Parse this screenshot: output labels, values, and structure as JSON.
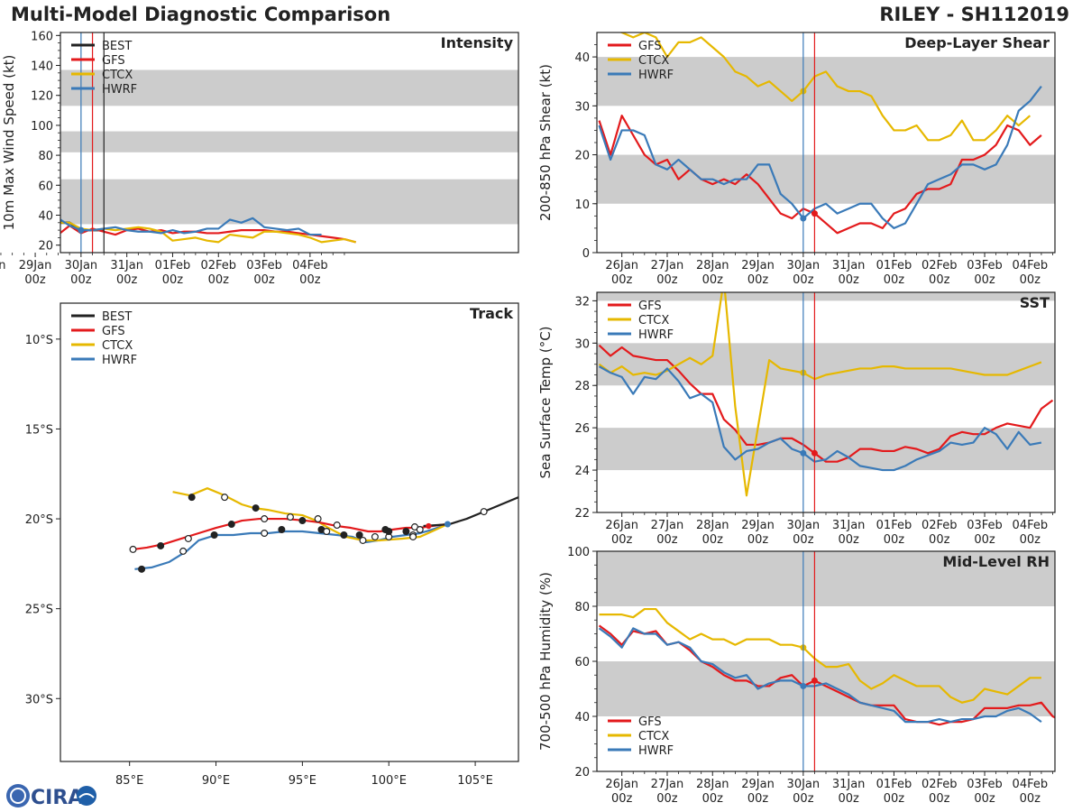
{
  "header": {
    "title": "Multi-Model Diagnostic Comparison",
    "storm": "RILEY - SH112019"
  },
  "logo": {
    "text": "CIRA"
  },
  "colors": {
    "BEST": "#222222",
    "GFS": "#e31a1c",
    "CTCX": "#e6b800",
    "HWRF": "#3a7ab8",
    "band": "#cccccc",
    "vline_init": "#3a7ab8",
    "vline_gfs": "#e31a1c",
    "vline_best": "#222222"
  },
  "time_ticks": [
    [
      "26Jan",
      "00z"
    ],
    [
      "27Jan",
      "00z"
    ],
    [
      "28Jan",
      "00z"
    ],
    [
      "29Jan",
      "00z"
    ],
    [
      "30Jan",
      "00z"
    ],
    [
      "31Jan",
      "00z"
    ],
    [
      "01Feb",
      "00z"
    ],
    [
      "02Feb",
      "00z"
    ],
    [
      "03Feb",
      "00z"
    ],
    [
      "04Feb",
      "00z"
    ]
  ],
  "chart_data": [
    {
      "id": "intensity",
      "type": "line",
      "title": "Intensity",
      "ylabel": "10m Max Wind Speed (kt)",
      "xlim": [
        -0.45,
        9.55
      ],
      "ylim": [
        15,
        162
      ],
      "yticks": [
        20,
        40,
        60,
        80,
        100,
        120,
        140,
        160
      ],
      "bands": [
        [
          34,
          64
        ],
        [
          82,
          96
        ],
        [
          113,
          137
        ]
      ],
      "vlines": [
        {
          "x": 0.0,
          "color": "vline_init"
        },
        {
          "x": 0.25,
          "color": "vline_gfs"
        },
        {
          "x": 0.5,
          "color": "vline_best"
        }
      ],
      "legend": [
        "BEST",
        "GFS",
        "CTCX",
        "HWRF"
      ],
      "legend_pos": "top-left",
      "series": [
        {
          "name": "BEST",
          "x0": -4.5,
          "values": [
            65,
            70,
            65,
            60,
            55,
            60,
            65,
            70,
            70,
            70,
            70,
            65,
            60,
            50,
            40,
            35,
            35,
            35,
            30,
            30,
            30
          ]
        },
        {
          "name": "GFS",
          "x0": -4.5,
          "values": [
            60,
            59,
            64,
            60,
            48,
            67,
            64,
            75,
            51,
            64,
            67,
            55,
            51,
            40,
            39,
            29,
            27,
            33,
            28,
            31,
            29,
            27,
            30,
            31,
            29,
            30,
            28,
            29,
            29,
            28,
            28,
            29,
            30,
            30,
            30,
            29,
            29,
            28,
            27,
            26,
            25,
            24,
            22
          ]
        },
        {
          "name": "CTCX",
          "x0": -4.5,
          "values": [
            62,
            68,
            69,
            62,
            56,
            60,
            63,
            70,
            70,
            69,
            69,
            68,
            62,
            54,
            42,
            35,
            35,
            35,
            31,
            30,
            31,
            30,
            31,
            32,
            31,
            29,
            23,
            24,
            25,
            23,
            22,
            27,
            26,
            25,
            29,
            29,
            28,
            27,
            25,
            22,
            23,
            24,
            22
          ]
        },
        {
          "name": "HWRF",
          "x0": -4.5,
          "values": [
            64,
            70,
            68,
            63,
            56,
            61,
            64,
            70,
            71,
            74,
            73,
            70,
            62,
            52,
            40,
            34,
            38,
            33,
            30,
            30,
            31,
            32,
            30,
            29,
            29,
            28,
            30,
            28,
            29,
            31,
            31,
            37,
            35,
            38,
            32,
            31,
            30,
            31,
            27,
            27
          ]
        }
      ]
    },
    {
      "id": "track",
      "type": "scatter",
      "title": "Track",
      "xlim": [
        81.0,
        107.5
      ],
      "ylim": [
        -33.5,
        -8.0
      ],
      "xticks": [
        [
          85,
          "85°E"
        ],
        [
          90,
          "90°E"
        ],
        [
          95,
          "95°E"
        ],
        [
          100,
          "100°E"
        ],
        [
          105,
          "105°E"
        ]
      ],
      "yticks": [
        [
          -10,
          "10°S"
        ],
        [
          -15,
          "15°S"
        ],
        [
          -20,
          "20°S"
        ],
        [
          -25,
          "25°S"
        ],
        [
          -30,
          "30°S"
        ]
      ],
      "legend": [
        "BEST",
        "GFS",
        "CTCX",
        "HWRF"
      ],
      "legend_pos": "top-left",
      "series": [
        {
          "name": "BEST",
          "lon": [
            107.5,
            106.5,
            105.5,
            104.5,
            103.5,
            102.8,
            102.0
          ],
          "lat": [
            -18.8,
            -19.2,
            -19.6,
            -20.0,
            -20.3,
            -20.35,
            -20.4
          ]
        },
        {
          "name": "GFS",
          "lon": [
            103.3,
            102.5,
            101.8,
            101.0,
            100.2,
            99.5,
            98.8,
            97.8,
            97.0,
            96.0,
            95.2,
            94.0,
            92.5,
            91.5,
            90.8,
            90.0,
            89.0,
            88.0,
            87.0,
            86.0,
            85.2
          ],
          "lat": [
            -20.3,
            -20.4,
            -20.5,
            -20.5,
            -20.6,
            -20.7,
            -20.7,
            -20.5,
            -20.4,
            -20.2,
            -20.1,
            -20.0,
            -20.0,
            -20.1,
            -20.3,
            -20.5,
            -20.8,
            -21.1,
            -21.4,
            -21.6,
            -21.7
          ],
          "filled": [
            [
              99.8,
              -20.6
            ],
            [
              95.0,
              -20.1
            ],
            [
              90.9,
              -20.3
            ],
            [
              86.8,
              -21.5
            ]
          ],
          "open": [
            [
              101.5,
              -20.45
            ],
            [
              97.0,
              -20.35
            ],
            [
              92.8,
              -20.0
            ],
            [
              85.2,
              -21.7
            ]
          ]
        },
        {
          "name": "CTCX",
          "lon": [
            103.4,
            102.5,
            101.8,
            100.8,
            99.5,
            98.5,
            97.5,
            96.5,
            95.8,
            95.0,
            94.0,
            93.0,
            92.2,
            91.5,
            90.5,
            89.5,
            88.5,
            87.5
          ],
          "lat": [
            -20.3,
            -20.7,
            -21.0,
            -21.1,
            -21.2,
            -21.2,
            -21.0,
            -20.5,
            -20.1,
            -19.8,
            -19.7,
            -19.5,
            -19.4,
            -19.2,
            -18.7,
            -18.3,
            -18.7,
            -18.5
          ],
          "filled": [
            [
              92.3,
              -19.4
            ],
            [
              96.1,
              -20.6
            ],
            [
              88.6,
              -18.8
            ]
          ],
          "open": [
            [
              100.0,
              -21.0
            ],
            [
              98.5,
              -21.2
            ],
            [
              95.9,
              -20.0
            ],
            [
              94.3,
              -19.9
            ],
            [
              90.5,
              -18.8
            ],
            [
              101.4,
              -20.9
            ]
          ]
        },
        {
          "name": "HWRF",
          "lon": [
            103.4,
            102.5,
            101.8,
            101.0,
            100.2,
            99.4,
            98.7,
            97.9,
            97.0,
            96.0,
            95.0,
            94.0,
            93.0,
            92.0,
            91.0,
            90.0,
            89.0,
            88.3,
            87.3,
            86.3,
            85.3
          ],
          "lat": [
            -20.3,
            -20.6,
            -20.8,
            -20.9,
            -21.0,
            -21.2,
            -21.3,
            -21.0,
            -20.9,
            -20.8,
            -20.7,
            -20.7,
            -20.8,
            -20.8,
            -20.9,
            -20.9,
            -21.2,
            -21.8,
            -22.4,
            -22.7,
            -22.8
          ]
        }
      ],
      "hwrf_points": {
        "filled": [
          [
            97.4,
            -20.9
          ],
          [
            93.8,
            -20.6
          ],
          [
            89.9,
            -20.9
          ],
          [
            85.7,
            -22.8
          ]
        ],
        "open": [
          [
            101.4,
            -21.0
          ],
          [
            99.2,
            -21.0
          ],
          [
            96.4,
            -20.7
          ],
          [
            92.8,
            -20.8
          ],
          [
            88.4,
            -21.1
          ],
          [
            88.1,
            -21.8
          ]
        ]
      },
      "best_points": {
        "filled": [
          [
            101.0,
            -20.7
          ],
          [
            100.0,
            -20.7
          ],
          [
            98.3,
            -20.9
          ]
        ],
        "open": [
          [
            105.5,
            -19.6
          ],
          [
            101.8,
            -20.6
          ]
        ]
      }
    },
    {
      "id": "shear",
      "type": "line",
      "title": "Deep-Layer Shear",
      "ylabel": "200-850 hPa Shear (kt)",
      "xlim": [
        -4.55,
        5.55
      ],
      "ylim": [
        0,
        45
      ],
      "yticks": [
        0,
        10,
        20,
        30,
        40
      ],
      "bands": [
        [
          10,
          20
        ],
        [
          30,
          40
        ]
      ],
      "vlines": [
        {
          "x": 0.0,
          "color": "vline_init"
        },
        {
          "x": 0.25,
          "color": "vline_gfs"
        }
      ],
      "legend": [
        "GFS",
        "CTCX",
        "HWRF"
      ],
      "legend_pos": "top-left",
      "series": [
        {
          "name": "GFS",
          "x0": -4.5,
          "values": [
            27,
            20,
            28,
            24,
            20,
            18,
            19,
            15,
            17,
            15,
            14,
            15,
            14,
            16,
            14,
            11,
            8,
            7,
            9,
            8,
            6,
            4,
            5,
            6,
            6,
            5,
            8,
            9,
            12,
            13,
            13,
            14,
            19,
            19,
            20,
            22,
            26,
            25,
            22,
            24
          ]
        },
        {
          "name": "CTCX",
          "x0": -4.5,
          "values": [
            47,
            46,
            45,
            44,
            45,
            44,
            40,
            43,
            43,
            44,
            42,
            40,
            37,
            36,
            34,
            35,
            33,
            31,
            33,
            36,
            37,
            34,
            33,
            33,
            32,
            28,
            25,
            25,
            26,
            23,
            23,
            24,
            27,
            23,
            23,
            25,
            28,
            26,
            28
          ]
        },
        {
          "name": "HWRF",
          "x0": -4.5,
          "values": [
            26,
            19,
            25,
            25,
            24,
            18,
            17,
            19,
            17,
            15,
            15,
            14,
            15,
            15,
            18,
            18,
            12,
            10,
            7,
            9,
            10,
            8,
            9,
            10,
            10,
            7,
            5,
            6,
            10,
            14,
            15,
            16,
            18,
            18,
            17,
            18,
            22,
            29,
            31,
            34
          ]
        }
      ]
    },
    {
      "id": "sst",
      "type": "line",
      "title": "SST",
      "ylabel": "Sea Surface Temp (°C)",
      "xlim": [
        -4.55,
        5.55
      ],
      "ylim": [
        22,
        32.4
      ],
      "yticks": [
        22,
        24,
        26,
        28,
        30,
        32
      ],
      "bands": [
        [
          24,
          26
        ],
        [
          28,
          30
        ],
        [
          32,
          32.4
        ]
      ],
      "vlines": [
        {
          "x": 0.0,
          "color": "vline_init"
        },
        {
          "x": 0.25,
          "color": "vline_gfs"
        }
      ],
      "legend": [
        "GFS",
        "CTCX",
        "HWRF"
      ],
      "legend_pos": "top-left",
      "series": [
        {
          "name": "GFS",
          "x0": -4.5,
          "values": [
            29.9,
            29.4,
            29.8,
            29.4,
            29.3,
            29.2,
            29.2,
            28.7,
            28.1,
            27.6,
            27.6,
            26.4,
            25.9,
            25.2,
            25.2,
            25.3,
            25.5,
            25.5,
            25.2,
            24.8,
            24.4,
            24.4,
            24.6,
            25.0,
            25.0,
            24.9,
            24.9,
            25.1,
            25.0,
            24.8,
            25.0,
            25.6,
            25.8,
            25.7,
            25.7,
            26.0,
            26.2,
            26.1,
            26.0,
            26.9,
            27.3
          ]
        },
        {
          "name": "CTCX",
          "x0": -4.5,
          "values": [
            29.0,
            28.6,
            28.9,
            28.5,
            28.6,
            28.5,
            28.7,
            29.0,
            29.3,
            29.0,
            29.4,
            33.0,
            27.0,
            22.8,
            26.0,
            29.2,
            28.8,
            28.7,
            28.6,
            28.3,
            28.5,
            28.6,
            28.7,
            28.8,
            28.8,
            28.9,
            28.9,
            28.8,
            28.8,
            28.8,
            28.8,
            28.8,
            28.7,
            28.6,
            28.5,
            28.5,
            28.5,
            28.7,
            28.9,
            29.1
          ]
        },
        {
          "name": "HWRF",
          "x0": -4.5,
          "values": [
            28.9,
            28.6,
            28.4,
            27.6,
            28.4,
            28.3,
            28.8,
            28.2,
            27.4,
            27.6,
            27.2,
            25.1,
            24.5,
            24.9,
            25.0,
            25.3,
            25.5,
            25.0,
            24.8,
            24.4,
            24.5,
            24.9,
            24.6,
            24.2,
            24.1,
            24.0,
            24.0,
            24.2,
            24.5,
            24.7,
            24.9,
            25.3,
            25.2,
            25.3,
            26.0,
            25.7,
            25.0,
            25.8,
            25.2,
            25.3
          ]
        }
      ]
    },
    {
      "id": "rh",
      "type": "line",
      "title": "Mid-Level RH",
      "ylabel": "700-500 hPa Humidity (%)",
      "xlim": [
        -4.55,
        5.55
      ],
      "ylim": [
        20,
        100
      ],
      "yticks": [
        20,
        40,
        60,
        80,
        100
      ],
      "bands": [
        [
          40,
          60
        ],
        [
          80,
          100
        ]
      ],
      "vlines": [
        {
          "x": 0.0,
          "color": "vline_init"
        },
        {
          "x": 0.25,
          "color": "vline_gfs"
        }
      ],
      "legend": [
        "GFS",
        "CTCX",
        "HWRF"
      ],
      "legend_pos": "bottom-left",
      "series": [
        {
          "name": "GFS",
          "x0": -4.5,
          "values": [
            73,
            70,
            66,
            71,
            70,
            71,
            66,
            67,
            64,
            60,
            58,
            55,
            53,
            53,
            51,
            51,
            54,
            55,
            51,
            53,
            51,
            49,
            47,
            45,
            44,
            44,
            44,
            39,
            38,
            38,
            37,
            38,
            38,
            39,
            43,
            43,
            43,
            44,
            44,
            45,
            40,
            38
          ]
        },
        {
          "name": "CTCX",
          "x0": -4.5,
          "values": [
            77,
            77,
            77,
            76,
            79,
            79,
            74,
            71,
            68,
            70,
            68,
            68,
            66,
            68,
            68,
            68,
            66,
            66,
            65,
            61,
            58,
            58,
            59,
            53,
            50,
            52,
            55,
            53,
            51,
            51,
            51,
            47,
            45,
            46,
            50,
            49,
            48,
            51,
            54,
            54
          ]
        },
        {
          "name": "HWRF",
          "x0": -4.5,
          "values": [
            72,
            69,
            65,
            72,
            70,
            70,
            66,
            67,
            65,
            60,
            59,
            56,
            54,
            55,
            50,
            52,
            53,
            53,
            51,
            51,
            52,
            50,
            48,
            45,
            44,
            43,
            42,
            38,
            38,
            38,
            39,
            38,
            39,
            39,
            40,
            40,
            42,
            43,
            41,
            38
          ]
        }
      ]
    }
  ]
}
